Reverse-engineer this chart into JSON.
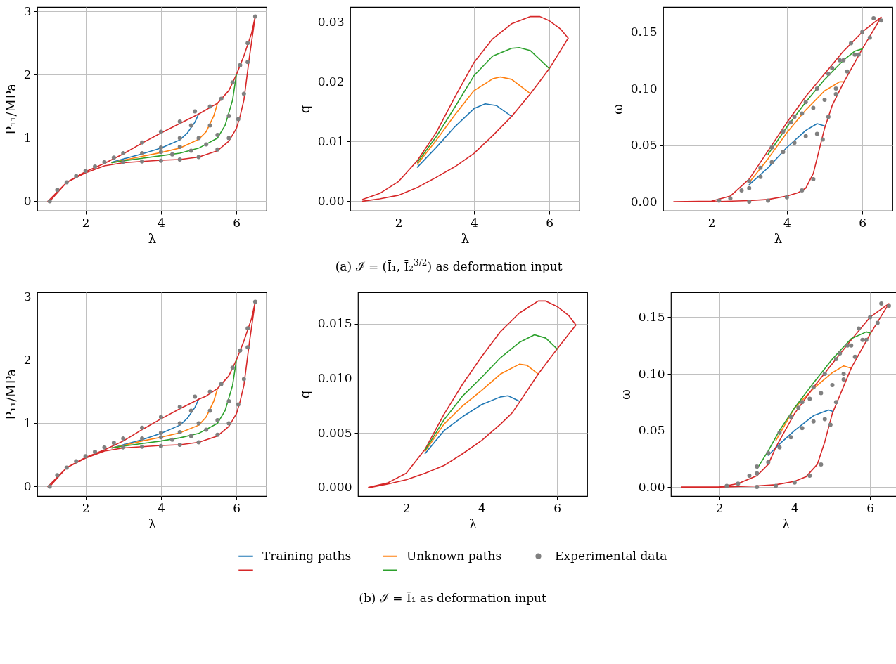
{
  "chart_data": [
    {
      "type": "line",
      "xlabel": "λ",
      "ylabel": "P₁₁/MPa",
      "xlim": [
        0.72,
        6.8
      ],
      "ylim": [
        -0.15,
        3.07
      ],
      "xticks": [
        2,
        4,
        6
      ],
      "yticks": [
        0,
        1,
        2,
        3
      ],
      "grid": true,
      "legend": "bottom",
      "series": [
        {
          "name": "Training paths",
          "color": "#1f77b4",
          "x": [
            5,
            4.9,
            4.7,
            4.5,
            4,
            3.5,
            3,
            2.7
          ],
          "values": [
            1.38,
            1.25,
            1.08,
            0.97,
            0.84,
            0.75,
            0.67,
            0.62
          ]
        },
        {
          "name": "Unknown paths",
          "color": "#ff7f0e",
          "x": [
            5.5,
            5.4,
            5.2,
            5,
            4.5,
            4,
            3.5,
            3,
            2.7
          ],
          "values": [
            1.55,
            1.35,
            1.1,
            0.98,
            0.84,
            0.77,
            0.71,
            0.65,
            0.61
          ]
        },
        {
          "color": "#d62728",
          "x": [
            1,
            1.25,
            1.5,
            2,
            2.5,
            3,
            3.5,
            4,
            4.5,
            5,
            5.5,
            5.8,
            6,
            6.2,
            6.4,
            6.5,
            6.35,
            6.2,
            6.1,
            6,
            5.8,
            5.5,
            5,
            4.5,
            4,
            3.5,
            3,
            2.5,
            2,
            1.5,
            1.05
          ],
          "values": [
            0,
            0.15,
            0.3,
            0.47,
            0.6,
            0.75,
            0.92,
            1.08,
            1.23,
            1.38,
            1.55,
            1.75,
            2.0,
            2.3,
            2.65,
            2.92,
            2.3,
            1.6,
            1.35,
            1.15,
            0.95,
            0.8,
            0.7,
            0.66,
            0.65,
            0.63,
            0.61,
            0.56,
            0.45,
            0.3,
            0
          ]
        },
        {
          "color": "#2ca02c",
          "x": [
            6,
            5.9,
            5.7,
            5.5,
            5,
            4.5,
            4,
            3.5,
            3,
            2.7
          ],
          "values": [
            2.0,
            1.6,
            1.2,
            1.0,
            0.84,
            0.76,
            0.72,
            0.68,
            0.64,
            0.61
          ]
        },
        {
          "name": "Experimental data",
          "type": "scatter",
          "marker": "circle",
          "color": "#808080",
          "x": [
            1.05,
            1.25,
            1.5,
            1.75,
            2,
            2.25,
            2.5,
            2.75,
            3,
            3.5,
            4,
            4.5,
            4.9,
            5.3,
            5.6,
            5.9,
            6.1,
            6.3,
            6.5,
            6.3,
            6.2,
            6.05,
            5.8,
            5.5,
            5,
            4.5,
            4,
            3.5,
            3,
            4.8,
            4.5,
            4,
            3.5,
            5.3,
            5,
            4.5,
            4,
            5.8,
            5.5,
            5.2,
            4.8,
            4.3
          ],
          "values": [
            0,
            0.18,
            0.3,
            0.4,
            0.48,
            0.55,
            0.62,
            0.69,
            0.76,
            0.93,
            1.1,
            1.26,
            1.42,
            1.5,
            1.62,
            1.88,
            2.15,
            2.5,
            2.92,
            2.2,
            1.7,
            1.3,
            1.0,
            0.82,
            0.7,
            0.66,
            0.64,
            0.63,
            0.62,
            1.2,
            1.0,
            0.85,
            0.76,
            1.2,
            1.0,
            0.86,
            0.78,
            1.35,
            1.05,
            0.9,
            0.8,
            0.74
          ]
        }
      ]
    },
    {
      "type": "line",
      "xlabel": "λ",
      "ylabel": "q",
      "xlim": [
        0.72,
        6.8
      ],
      "ylim": [
        -0.0016,
        0.0325
      ],
      "xticks": [
        2,
        4,
        6
      ],
      "yticks": [
        {
          "value": 0,
          "label": "0.00"
        },
        {
          "value": 0.01,
          "label": "0.01"
        },
        {
          "value": 0.02,
          "label": "0.02"
        },
        {
          "value": 0.03,
          "label": "0.03"
        }
      ],
      "grid": true,
      "annotations": [
        "(a) ℐ = (Ī₁, Ī₂$^{3/2}$) as deformation input"
      ],
      "series": [
        {
          "color": "#1f77b4",
          "x": [
            2.5,
            3,
            3.5,
            4,
            4.3,
            4.6,
            5
          ],
          "values": [
            0.0057,
            0.009,
            0.0125,
            0.0155,
            0.0163,
            0.016,
            0.0142
          ]
        },
        {
          "color": "#ff7f0e",
          "x": [
            2.5,
            3,
            3.5,
            4,
            4.5,
            4.7,
            5,
            5.5
          ],
          "values": [
            0.0062,
            0.0102,
            0.0145,
            0.0185,
            0.0205,
            0.0208,
            0.0204,
            0.018
          ]
        },
        {
          "color": "#d62728",
          "x": [
            1.05,
            1.5,
            2,
            2.5,
            3,
            3.5,
            4,
            4.5,
            5,
            5.5,
            5.75,
            6,
            6.3,
            6.5,
            6,
            5.5,
            5,
            4.5,
            4,
            3.5,
            3,
            2.5,
            2,
            1.5,
            1.05
          ],
          "values": [
            0.0003,
            0.0013,
            0.0033,
            0.0068,
            0.0115,
            0.0175,
            0.0232,
            0.0272,
            0.0297,
            0.0309,
            0.0309,
            0.0302,
            0.0288,
            0.0273,
            0.0222,
            0.018,
            0.0142,
            0.011,
            0.008,
            0.0058,
            0.004,
            0.0023,
            0.001,
            0.0004,
            0
          ]
        },
        {
          "color": "#2ca02c",
          "x": [
            2.5,
            3,
            3.5,
            4,
            4.5,
            5,
            5.2,
            5.5,
            6
          ],
          "values": [
            0.0065,
            0.0108,
            0.0158,
            0.021,
            0.0243,
            0.0256,
            0.0257,
            0.0252,
            0.0222
          ]
        }
      ]
    },
    {
      "type": "line",
      "xlabel": "λ",
      "ylabel": "ω",
      "xlim": [
        0.72,
        6.8
      ],
      "ylim": [
        -0.008,
        0.172
      ],
      "xticks": [
        2,
        4,
        6
      ],
      "yticks": [
        {
          "value": 0,
          "label": "0.00"
        },
        {
          "value": 0.05,
          "label": "0.05"
        },
        {
          "value": 0.1,
          "label": "0.10"
        },
        {
          "value": 0.15,
          "label": "0.15"
        }
      ],
      "grid": true,
      "series": [
        {
          "color": "#1f77b4",
          "x": [
            3,
            3.5,
            4,
            4.5,
            4.8,
            5
          ],
          "values": [
            0.015,
            0.03,
            0.048,
            0.063,
            0.069,
            0.067
          ]
        },
        {
          "color": "#ff7f0e",
          "x": [
            3,
            3.5,
            4,
            4.5,
            5,
            5.4,
            5.5
          ],
          "values": [
            0.017,
            0.038,
            0.061,
            0.081,
            0.098,
            0.106,
            0.106
          ]
        },
        {
          "color": "#d62728",
          "x": [
            1,
            2,
            2.5,
            3,
            3.5,
            4,
            4.5,
            5,
            5.5,
            6,
            6.3,
            6.5,
            6,
            5.5,
            5.2,
            5,
            4.85,
            4.7,
            4.5,
            4.3,
            4,
            3.5,
            3,
            2,
            1.05
          ],
          "values": [
            0,
            0.0005,
            0.005,
            0.02,
            0.045,
            0.07,
            0.093,
            0.113,
            0.133,
            0.15,
            0.158,
            0.163,
            0.135,
            0.105,
            0.085,
            0.065,
            0.045,
            0.025,
            0.012,
            0.008,
            0.005,
            0.002,
            0.001,
            0,
            0
          ]
        },
        {
          "color": "#2ca02c",
          "x": [
            3.5,
            4,
            4.5,
            5,
            5.5,
            5.8,
            6
          ],
          "values": [
            0.042,
            0.066,
            0.088,
            0.108,
            0.125,
            0.133,
            0.135
          ]
        },
        {
          "type": "scatter",
          "marker": "circle",
          "color": "#808080",
          "x": [
            2.2,
            2.5,
            2.8,
            3,
            3.3,
            3.6,
            3.9,
            4.2,
            4.5,
            4.8,
            5.1,
            5.4,
            5.7,
            6,
            6.3,
            6.5,
            6.2,
            5.9,
            5.6,
            5.3,
            5.1,
            4.95,
            4.7,
            4.4,
            4,
            3.5,
            3,
            4.8,
            4.5,
            4.2,
            3.9,
            3.6,
            3.3,
            3,
            5.3,
            5,
            4.7,
            4.4,
            4.1,
            5.8,
            5.5,
            5.2
          ],
          "values": [
            0.001,
            0.003,
            0.01,
            0.018,
            0.03,
            0.048,
            0.062,
            0.075,
            0.088,
            0.1,
            0.113,
            0.125,
            0.14,
            0.15,
            0.162,
            0.16,
            0.145,
            0.13,
            0.115,
            0.095,
            0.075,
            0.055,
            0.02,
            0.01,
            0.004,
            0.001,
            0,
            0.06,
            0.058,
            0.052,
            0.044,
            0.035,
            0.022,
            0.012,
            0.1,
            0.09,
            0.083,
            0.078,
            0.07,
            0.13,
            0.125,
            0.118
          ]
        }
      ]
    },
    {
      "type": "line",
      "xlabel": "λ",
      "ylabel": "P₁₁/MPa",
      "xlim": [
        0.72,
        6.8
      ],
      "ylim": [
        -0.15,
        3.07
      ],
      "xticks": [
        2,
        4,
        6
      ],
      "yticks": [
        0,
        1,
        2,
        3
      ],
      "grid": true,
      "series": [
        {
          "color": "#1f77b4",
          "x": [
            5,
            4.9,
            4.7,
            4.5,
            4,
            3.5,
            3,
            2.7
          ],
          "values": [
            1.38,
            1.25,
            1.08,
            0.97,
            0.84,
            0.74,
            0.66,
            0.61
          ]
        },
        {
          "color": "#ff7f0e",
          "x": [
            5.5,
            5.4,
            5.2,
            5,
            4.5,
            4,
            3.5,
            3,
            2.7
          ],
          "values": [
            1.55,
            1.35,
            1.1,
            0.97,
            0.85,
            0.78,
            0.72,
            0.65,
            0.61
          ]
        },
        {
          "color": "#d62728",
          "x": [
            1,
            1.25,
            1.5,
            2,
            2.5,
            3,
            3.5,
            4,
            4.5,
            5,
            5.2,
            5.5,
            5.8,
            6,
            6.2,
            6.4,
            6.5,
            6.35,
            6.2,
            6.1,
            6,
            5.8,
            5.5,
            5,
            4.5,
            4,
            3.5,
            3,
            2.5,
            2,
            1.5,
            1.05
          ],
          "values": [
            0,
            0.15,
            0.3,
            0.46,
            0.58,
            0.72,
            0.9,
            1.07,
            1.23,
            1.38,
            1.43,
            1.55,
            1.75,
            2.0,
            2.3,
            2.65,
            2.92,
            2.3,
            1.6,
            1.35,
            1.15,
            0.95,
            0.8,
            0.7,
            0.66,
            0.65,
            0.63,
            0.61,
            0.56,
            0.45,
            0.3,
            0
          ]
        },
        {
          "color": "#2ca02c",
          "x": [
            6,
            5.9,
            5.7,
            5.5,
            5,
            4.5,
            4,
            3.5,
            3,
            2.7
          ],
          "values": [
            2.0,
            1.6,
            1.2,
            1.0,
            0.84,
            0.77,
            0.72,
            0.68,
            0.64,
            0.61
          ]
        },
        {
          "type": "scatter",
          "marker": "circle",
          "color": "#808080",
          "x": [
            1.05,
            1.25,
            1.5,
            1.75,
            2,
            2.25,
            2.5,
            2.75,
            3,
            3.5,
            4,
            4.5,
            4.9,
            5.3,
            5.6,
            5.9,
            6.1,
            6.3,
            6.5,
            6.3,
            6.2,
            6.05,
            5.8,
            5.5,
            5,
            4.5,
            4,
            3.5,
            3,
            4.8,
            4.5,
            4,
            3.5,
            5.3,
            5,
            4.5,
            4,
            5.8,
            5.5,
            5.2,
            4.8,
            4.3
          ],
          "values": [
            0,
            0.18,
            0.3,
            0.4,
            0.48,
            0.55,
            0.62,
            0.69,
            0.76,
            0.93,
            1.1,
            1.26,
            1.42,
            1.5,
            1.62,
            1.88,
            2.15,
            2.5,
            2.92,
            2.2,
            1.7,
            1.3,
            1.0,
            0.82,
            0.7,
            0.66,
            0.64,
            0.63,
            0.62,
            1.2,
            1.0,
            0.85,
            0.76,
            1.2,
            1.0,
            0.86,
            0.78,
            1.35,
            1.05,
            0.9,
            0.8,
            0.74
          ]
        }
      ]
    },
    {
      "type": "line",
      "xlabel": "λ",
      "ylabel": "q",
      "xlim": [
        0.72,
        6.8
      ],
      "ylim": [
        -0.0008,
        0.0179
      ],
      "xticks": [
        2,
        4,
        6
      ],
      "yticks": [
        {
          "value": 0,
          "label": "0.000"
        },
        {
          "value": 0.005,
          "label": "0.005"
        },
        {
          "value": 0.01,
          "label": "0.010"
        },
        {
          "value": 0.015,
          "label": "0.015"
        }
      ],
      "grid": true,
      "annotations": [
        "(b) ℐ = Ī₁ as deformation input"
      ],
      "series": [
        {
          "color": "#1f77b4",
          "x": [
            2.5,
            3,
            3.5,
            4,
            4.5,
            4.7,
            5
          ],
          "values": [
            0.0031,
            0.0052,
            0.0065,
            0.0076,
            0.0083,
            0.0084,
            0.0079
          ]
        },
        {
          "color": "#ff7f0e",
          "x": [
            2.5,
            3,
            3.5,
            4,
            4.5,
            5,
            5.2,
            5.5
          ],
          "values": [
            0.0033,
            0.0058,
            0.0075,
            0.0089,
            0.0104,
            0.0113,
            0.0112,
            0.0104
          ]
        },
        {
          "color": "#d62728",
          "x": [
            1,
            1.5,
            2,
            2.5,
            3,
            3.5,
            4,
            4.5,
            5,
            5.5,
            5.7,
            6,
            6.3,
            6.5,
            6,
            5.5,
            5,
            4.8,
            4.5,
            4,
            3.5,
            3,
            2.5,
            2,
            1.5,
            1.05
          ],
          "values": [
            0,
            0.0004,
            0.0013,
            0.0035,
            0.0067,
            0.0095,
            0.012,
            0.0143,
            0.016,
            0.0171,
            0.0171,
            0.0166,
            0.0158,
            0.0149,
            0.0127,
            0.0104,
            0.0078,
            0.0068,
            0.0058,
            0.0043,
            0.0031,
            0.002,
            0.0013,
            0.0007,
            0.0003,
            0
          ]
        },
        {
          "color": "#2ca02c",
          "x": [
            2.5,
            3,
            3.5,
            4,
            4.5,
            5,
            5.4,
            5.7,
            6
          ],
          "values": [
            0.0034,
            0.0062,
            0.0084,
            0.0101,
            0.0119,
            0.0133,
            0.014,
            0.0137,
            0.0127
          ]
        }
      ]
    },
    {
      "type": "line",
      "xlabel": "λ",
      "ylabel": "ω",
      "xlim": [
        0.72,
        6.8
      ],
      "ylim": [
        -0.008,
        0.172
      ],
      "xticks": [
        2,
        4,
        6
      ],
      "yticks": [
        {
          "value": 0,
          "label": "0.00"
        },
        {
          "value": 0.05,
          "label": "0.05"
        },
        {
          "value": 0.1,
          "label": "0.10"
        },
        {
          "value": 0.15,
          "label": "0.15"
        }
      ],
      "grid": true,
      "series": [
        {
          "color": "#1f77b4",
          "x": [
            3.3,
            3.6,
            4,
            4.5,
            4.9,
            5
          ],
          "values": [
            0.028,
            0.038,
            0.05,
            0.063,
            0.068,
            0.067
          ]
        },
        {
          "color": "#ff7f0e",
          "x": [
            3.5,
            4,
            4.5,
            5,
            5.3,
            5.5
          ],
          "values": [
            0.041,
            0.07,
            0.087,
            0.101,
            0.107,
            0.105
          ]
        },
        {
          "color": "#d62728",
          "x": [
            1,
            2,
            2.5,
            3,
            3.3,
            3.5,
            4,
            4.5,
            5,
            5.5,
            6,
            6.5,
            6,
            5.5,
            5,
            4.8,
            4.6,
            4.3,
            4,
            3.5,
            3,
            2,
            1.05
          ],
          "values": [
            0,
            0,
            0.003,
            0.01,
            0.02,
            0.035,
            0.065,
            0.088,
            0.109,
            0.13,
            0.15,
            0.162,
            0.135,
            0.105,
            0.065,
            0.04,
            0.02,
            0.009,
            0.005,
            0.002,
            0.001,
            0,
            0
          ]
        },
        {
          "color": "#2ca02c",
          "x": [
            3,
            3.3,
            3.6,
            4,
            4.5,
            5,
            5.5,
            5.9,
            6
          ],
          "values": [
            0.016,
            0.032,
            0.05,
            0.07,
            0.092,
            0.113,
            0.131,
            0.137,
            0.136
          ]
        },
        {
          "type": "scatter",
          "marker": "circle",
          "color": "#808080",
          "x": [
            2.2,
            2.5,
            2.8,
            3,
            3.3,
            3.6,
            3.9,
            4.2,
            4.5,
            4.8,
            5.1,
            5.4,
            5.7,
            6,
            6.3,
            6.5,
            6.2,
            5.9,
            5.6,
            5.3,
            5.1,
            4.95,
            4.7,
            4.4,
            4,
            3.5,
            3,
            4.8,
            4.5,
            4.2,
            3.9,
            3.6,
            3.3,
            3,
            5.3,
            5,
            4.7,
            4.4,
            4.1,
            5.8,
            5.5,
            5.2
          ],
          "values": [
            0.001,
            0.003,
            0.01,
            0.018,
            0.03,
            0.048,
            0.062,
            0.075,
            0.088,
            0.1,
            0.113,
            0.125,
            0.14,
            0.15,
            0.162,
            0.16,
            0.145,
            0.13,
            0.115,
            0.095,
            0.075,
            0.055,
            0.02,
            0.01,
            0.004,
            0.001,
            0,
            0.06,
            0.058,
            0.052,
            0.044,
            0.035,
            0.022,
            0.012,
            0.1,
            0.09,
            0.083,
            0.078,
            0.07,
            0.13,
            0.125,
            0.118
          ]
        }
      ]
    }
  ]
}
